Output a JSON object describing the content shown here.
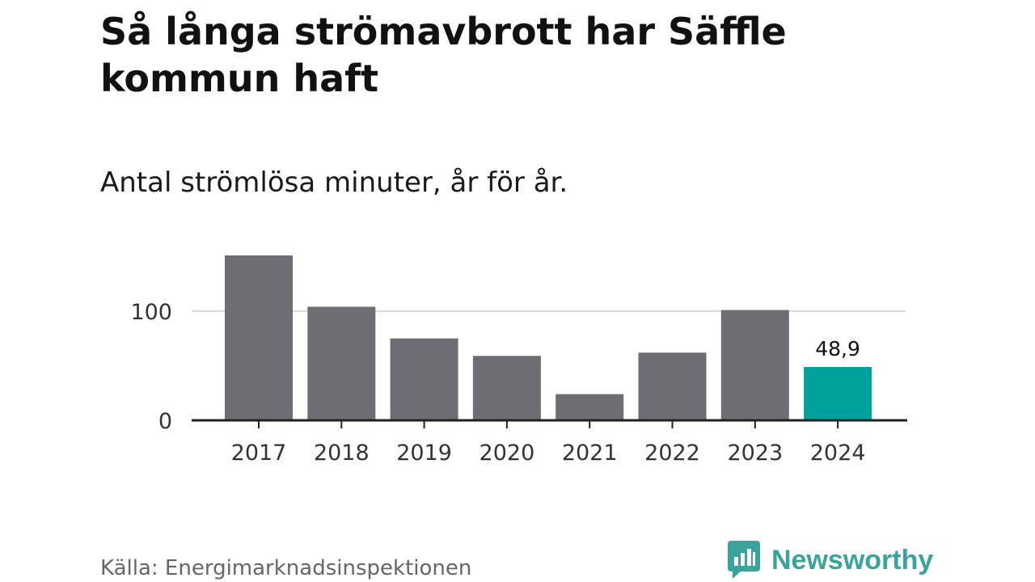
{
  "header": {
    "title": "Så långa strömavbrott har Säffle kommun haft",
    "subtitle": "Antal strömlösa minuter, år för år."
  },
  "footer": {
    "source": "Källa: Energimarknadsinspektionen",
    "brand": "Newsworthy",
    "brand_icon": "bar-chart-speech-bubble-icon"
  },
  "colors": {
    "bar": "#6e6d73",
    "highlight": "#00a19a",
    "brand": "#3aa39a",
    "grid": "#d9d9d9",
    "axis": "#222222"
  },
  "chart_data": {
    "type": "bar",
    "categories": [
      "2017",
      "2018",
      "2019",
      "2020",
      "2021",
      "2022",
      "2023",
      "2024"
    ],
    "values": [
      151,
      104,
      75,
      59,
      24,
      62,
      101,
      48.9
    ],
    "highlight_index": 7,
    "data_labels": [
      {
        "index": 7,
        "text": "48,9"
      }
    ],
    "y_ticks": [
      0,
      100
    ],
    "ylim": [
      0,
      151
    ],
    "grid": true,
    "legend": "none"
  }
}
